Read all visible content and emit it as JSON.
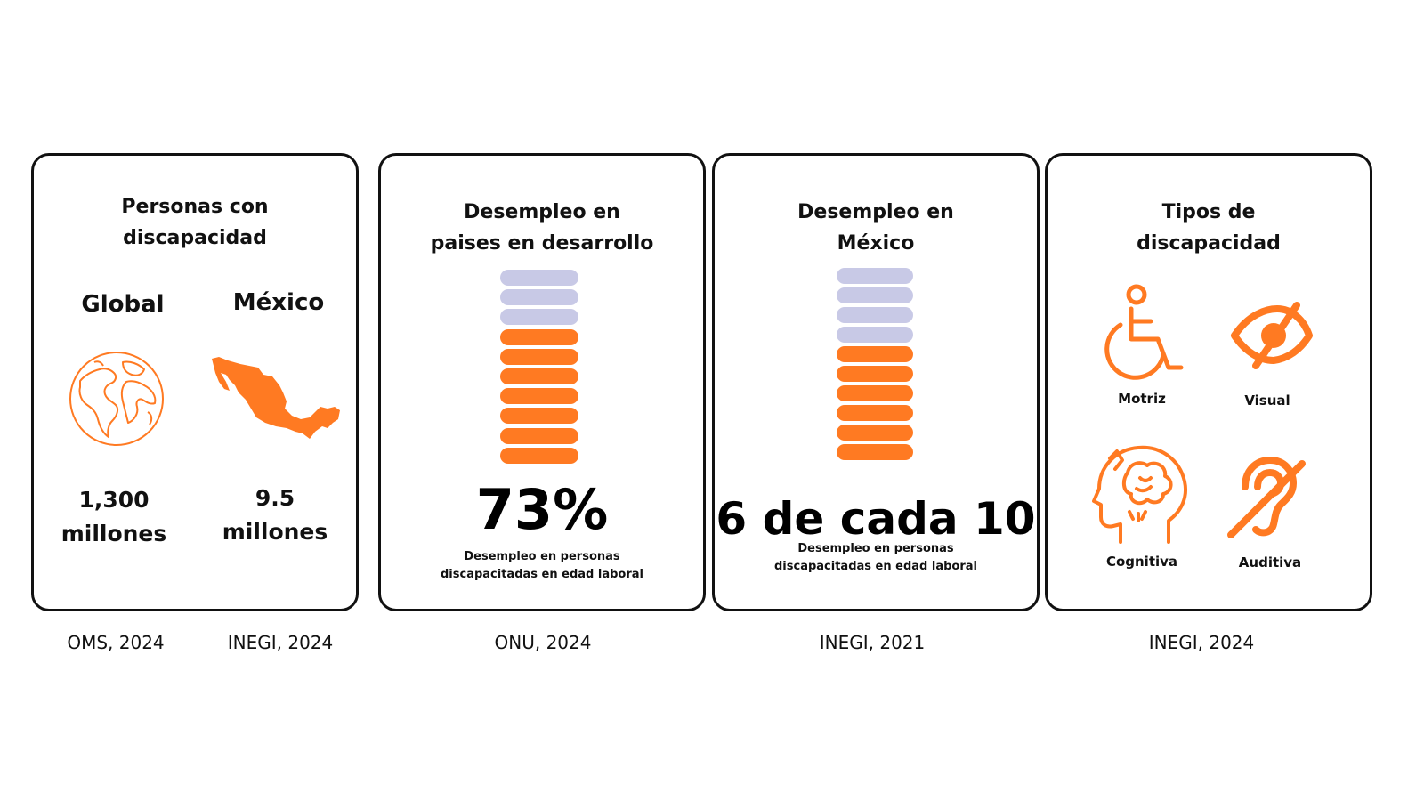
{
  "colors": {
    "accent": "#ff7a22",
    "muted": "#c8c9e6",
    "ink": "#111111"
  },
  "card1": {
    "title_line1": "Personas con",
    "title_line2": "discapacidad",
    "global": {
      "label": "Global",
      "value_line1": "1,300",
      "value_line2": "millones",
      "icon": "globe-icon",
      "source": "OMS, 2024"
    },
    "mexico": {
      "label": "México",
      "value_line1": "9.5",
      "value_line2": "millones",
      "icon": "mexico-map-icon",
      "source": "INEGI, 2024"
    }
  },
  "card2": {
    "title_line1": "Desempleo en",
    "title_line2": "paises en desarrollo",
    "bars": {
      "total": 10,
      "highlighted": 7
    },
    "big_value": "73%",
    "caption_line1": "Desempleo en personas",
    "caption_line2": "discapacitadas en edad laboral",
    "source": "ONU, 2024"
  },
  "card3": {
    "title_line1": "Desempleo en",
    "title_line2": "México",
    "bars": {
      "total": 10,
      "highlighted": 6
    },
    "big_value": "6 de cada 10",
    "caption_line1": "Desempleo en personas",
    "caption_line2": "discapacitadas en edad laboral",
    "source": "INEGI, 2021"
  },
  "card4": {
    "title_line1": "Tipos de",
    "title_line2": "discapacidad",
    "types": [
      {
        "label": "Motriz",
        "icon": "wheelchair-icon"
      },
      {
        "label": "Visual",
        "icon": "eye-slash-icon"
      },
      {
        "label": "Cognitiva",
        "icon": "head-brain-icon"
      },
      {
        "label": "Auditiva",
        "icon": "ear-slash-icon"
      }
    ],
    "source": "INEGI, 2024"
  }
}
